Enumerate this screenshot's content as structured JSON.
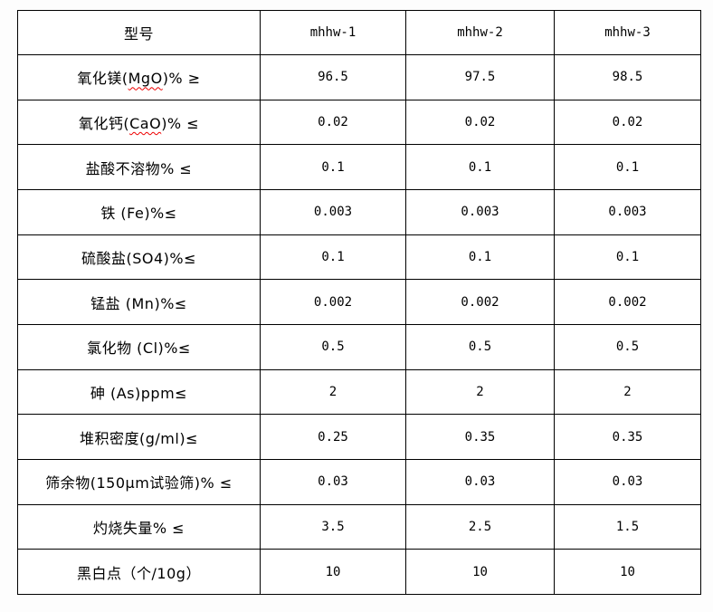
{
  "page": {
    "background_color": "#fdfdfd",
    "grid_color": "#000000",
    "text_color": "#000000",
    "spellcheck_squiggle_color": "#ee0000"
  },
  "table": {
    "header": {
      "col0": "型号",
      "col1": "mhhw-1",
      "col2": "mhhw-2",
      "col3": "mhhw-3"
    },
    "rows": [
      {
        "label_pre": "氧化镁(",
        "label_mark": "MgO",
        "label_post": ")% ≥",
        "values": [
          "96.5",
          "97.5",
          "98.5"
        ]
      },
      {
        "label_pre": "氧化钙(",
        "label_mark": "CaO",
        "label_post": ")% ≤",
        "values": [
          "0.02",
          "0.02",
          "0.02"
        ]
      },
      {
        "label_pre": "盐酸不溶物% ≤",
        "label_mark": "",
        "label_post": "",
        "values": [
          "0.1",
          "0.1",
          "0.1"
        ]
      },
      {
        "label_pre": "铁 (Fe)%≤",
        "label_mark": "",
        "label_post": "",
        "values": [
          "0.003",
          "0.003",
          "0.003"
        ]
      },
      {
        "label_pre": "硫酸盐(SO4)%≤",
        "label_mark": "",
        "label_post": "",
        "values": [
          "0.1",
          "0.1",
          "0.1"
        ]
      },
      {
        "label_pre": "锰盐 (Mn)%≤",
        "label_mark": "",
        "label_post": "",
        "values": [
          "0.002",
          "0.002",
          "0.002"
        ]
      },
      {
        "label_pre": "氯化物 (Cl)%≤",
        "label_mark": "",
        "label_post": "",
        "values": [
          "0.5",
          "0.5",
          "0.5"
        ]
      },
      {
        "label_pre": "砷 (As)ppm≤",
        "label_mark": "",
        "label_post": "",
        "values": [
          "2",
          "2",
          "2"
        ]
      },
      {
        "label_pre": "堆积密度(g/ml)≤",
        "label_mark": "",
        "label_post": "",
        "values": [
          "0.25",
          "0.35",
          "0.35"
        ]
      },
      {
        "label_pre": "筛余物(150μm试验筛)% ≤",
        "label_mark": "",
        "label_post": "",
        "values": [
          "0.03",
          "0.03",
          "0.03"
        ]
      },
      {
        "label_pre": "灼烧失量% ≤",
        "label_mark": "",
        "label_post": "",
        "values": [
          "3.5",
          "2.5",
          "1.5"
        ]
      },
      {
        "label_pre": "黑白点（个/10g）",
        "label_mark": "",
        "label_post": "",
        "values": [
          "10",
          "10",
          "10"
        ]
      }
    ]
  }
}
